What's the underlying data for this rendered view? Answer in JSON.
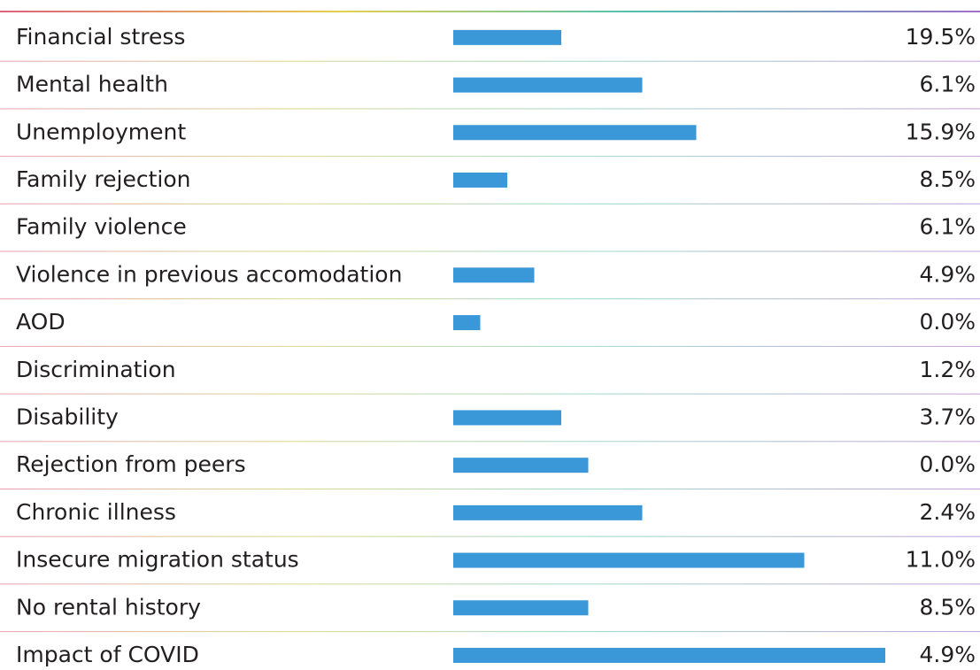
{
  "rows": [
    {
      "label": "Financial stress",
      "bar": 4,
      "percent": "19.5%"
    },
    {
      "label": "Mental health",
      "bar": 7,
      "percent": "6.1%"
    },
    {
      "label": "Unemployment",
      "bar": 9,
      "percent": "15.9%"
    },
    {
      "label": "Family rejection",
      "bar": 2,
      "percent": "8.5%"
    },
    {
      "label": "Family violence",
      "bar": 0,
      "percent": "6.1%"
    },
    {
      "label": "Violence in previous accomodation",
      "bar": 3,
      "percent": "4.9%"
    },
    {
      "label": "AOD",
      "bar": 1,
      "percent": "0.0%"
    },
    {
      "label": "Discrimination",
      "bar": 0,
      "percent": "1.2%"
    },
    {
      "label": "Disability",
      "bar": 4,
      "percent": "3.7%"
    },
    {
      "label": "Rejection from peers",
      "bar": 5,
      "percent": "0.0%"
    },
    {
      "label": "Chronic illness",
      "bar": 7,
      "percent": "2.4%"
    },
    {
      "label": "Insecure migration status",
      "bar": 13,
      "percent": "11.0%"
    },
    {
      "label": "No rental history",
      "bar": 5,
      "percent": "8.5%"
    },
    {
      "label": "Impact of COVID",
      "bar": 16,
      "percent": "4.9%"
    }
  ]
}
